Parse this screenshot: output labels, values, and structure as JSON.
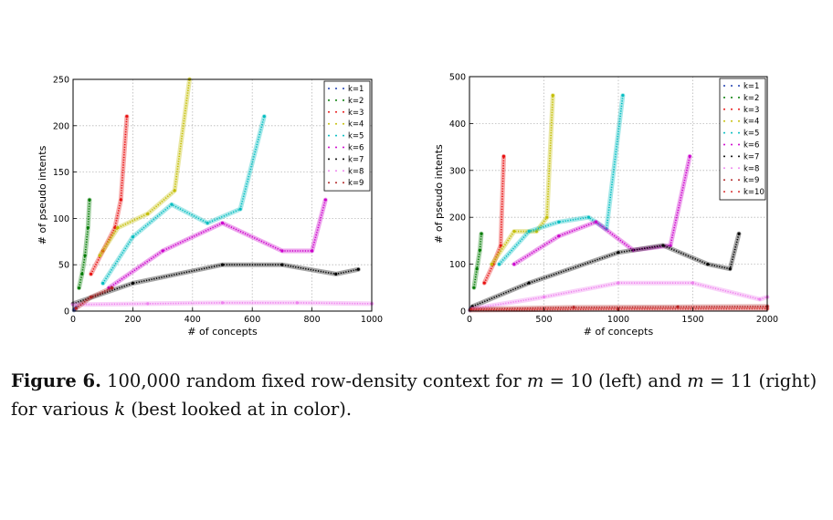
{
  "caption": {
    "label": "Figure 6.",
    "text_1": "100,000 random fixed row-density context for",
    "var_m": "m",
    "eq_1": "= 10 (left) and",
    "eq_2": "= 11",
    "text_2": "(right) for various",
    "var_k": "k",
    "text_3": "(best looked at in color)."
  },
  "chart_data": [
    {
      "type": "scatter",
      "title": "",
      "xlabel": "# of concepts",
      "ylabel": "# of pseudo intents",
      "xlim": [
        0,
        1000
      ],
      "ylim": [
        0,
        250
      ],
      "xticks": [
        0,
        200,
        400,
        600,
        800,
        1000
      ],
      "yticks": [
        0,
        50,
        100,
        150,
        200,
        250
      ],
      "grid": true,
      "legend_position": "top-right",
      "series": [
        {
          "name": "k=1",
          "color": "#1f3fb0",
          "points": [
            [
              3,
              1
            ],
            [
              5,
              2
            ],
            [
              8,
              3
            ],
            [
              10,
              4
            ]
          ]
        },
        {
          "name": "k=2",
          "color": "#007a00",
          "points": [
            [
              20,
              25
            ],
            [
              30,
              40
            ],
            [
              40,
              60
            ],
            [
              50,
              90
            ],
            [
              55,
              120
            ]
          ]
        },
        {
          "name": "k=3",
          "color": "#e81010",
          "points": [
            [
              60,
              40
            ],
            [
              100,
              65
            ],
            [
              140,
              90
            ],
            [
              160,
              120
            ],
            [
              180,
              210
            ]
          ]
        },
        {
          "name": "k=4",
          "color": "#c3bd00",
          "points": [
            [
              90,
              60
            ],
            [
              150,
              90
            ],
            [
              250,
              105
            ],
            [
              340,
              130
            ],
            [
              390,
              250
            ]
          ]
        },
        {
          "name": "k=5",
          "color": "#00bcc0",
          "points": [
            [
              100,
              30
            ],
            [
              200,
              80
            ],
            [
              330,
              115
            ],
            [
              450,
              95
            ],
            [
              560,
              110
            ],
            [
              640,
              210
            ]
          ]
        },
        {
          "name": "k=6",
          "color": "#cc00cc",
          "points": [
            [
              120,
              25
            ],
            [
              300,
              65
            ],
            [
              500,
              95
            ],
            [
              700,
              65
            ],
            [
              800,
              65
            ],
            [
              845,
              120
            ]
          ]
        },
        {
          "name": "k=7",
          "color": "#000000",
          "points": [
            [
              0,
              8
            ],
            [
              200,
              30
            ],
            [
              500,
              50
            ],
            [
              700,
              50
            ],
            [
              880,
              40
            ],
            [
              955,
              45
            ]
          ]
        },
        {
          "name": "k=8",
          "color": "#ee82ee",
          "points": [
            [
              0,
              7
            ],
            [
              250,
              8
            ],
            [
              500,
              9
            ],
            [
              750,
              9
            ],
            [
              1000,
              8
            ]
          ]
        },
        {
          "name": "k=9",
          "color": "#b02020",
          "points": [
            [
              10,
              3
            ],
            [
              60,
              15
            ],
            [
              130,
              25
            ]
          ]
        }
      ]
    },
    {
      "type": "scatter",
      "title": "",
      "xlabel": "# of concepts",
      "ylabel": "# of pseudo intents",
      "xlim": [
        0,
        2000
      ],
      "ylim": [
        0,
        500
      ],
      "xticks": [
        0,
        500,
        1000,
        1500,
        2000
      ],
      "yticks": [
        0,
        100,
        200,
        300,
        400,
        500
      ],
      "grid": true,
      "legend_position": "top-right",
      "series": [
        {
          "name": "k=1",
          "color": "#1f3fb0",
          "points": [
            [
              3,
              2
            ],
            [
              6,
              4
            ],
            [
              10,
              6
            ]
          ]
        },
        {
          "name": "k=2",
          "color": "#007a00",
          "points": [
            [
              30,
              50
            ],
            [
              50,
              90
            ],
            [
              70,
              130
            ],
            [
              80,
              165
            ]
          ]
        },
        {
          "name": "k=3",
          "color": "#e81010",
          "points": [
            [
              100,
              60
            ],
            [
              160,
              100
            ],
            [
              210,
              140
            ],
            [
              230,
              330
            ]
          ]
        },
        {
          "name": "k=4",
          "color": "#c3bd00",
          "points": [
            [
              150,
              100
            ],
            [
              300,
              170
            ],
            [
              450,
              170
            ],
            [
              520,
              200
            ],
            [
              560,
              460
            ]
          ]
        },
        {
          "name": "k=5",
          "color": "#00bcc0",
          "points": [
            [
              200,
              100
            ],
            [
              400,
              170
            ],
            [
              600,
              190
            ],
            [
              800,
              200
            ],
            [
              920,
              175
            ],
            [
              1030,
              460
            ]
          ]
        },
        {
          "name": "k=6",
          "color": "#cc00cc",
          "points": [
            [
              300,
              100
            ],
            [
              600,
              160
            ],
            [
              850,
              190
            ],
            [
              1100,
              130
            ],
            [
              1350,
              140
            ],
            [
              1480,
              330
            ]
          ]
        },
        {
          "name": "k=7",
          "color": "#000000",
          "points": [
            [
              20,
              10
            ],
            [
              400,
              60
            ],
            [
              1000,
              125
            ],
            [
              1300,
              140
            ],
            [
              1600,
              100
            ],
            [
              1750,
              90
            ],
            [
              1810,
              165
            ]
          ]
        },
        {
          "name": "k=8",
          "color": "#ee82ee",
          "points": [
            [
              20,
              5
            ],
            [
              500,
              30
            ],
            [
              1000,
              60
            ],
            [
              1500,
              60
            ],
            [
              1950,
              25
            ],
            [
              2000,
              30
            ]
          ]
        },
        {
          "name": "k=9",
          "color": "#b02020",
          "points": [
            [
              10,
              4
            ],
            [
              700,
              8
            ],
            [
              1400,
              9
            ],
            [
              2000,
              10
            ]
          ]
        },
        {
          "name": "k=10",
          "color": "#d83030",
          "points": [
            [
              5,
              2
            ],
            [
              1000,
              4
            ],
            [
              2000,
              5
            ]
          ]
        }
      ]
    }
  ]
}
